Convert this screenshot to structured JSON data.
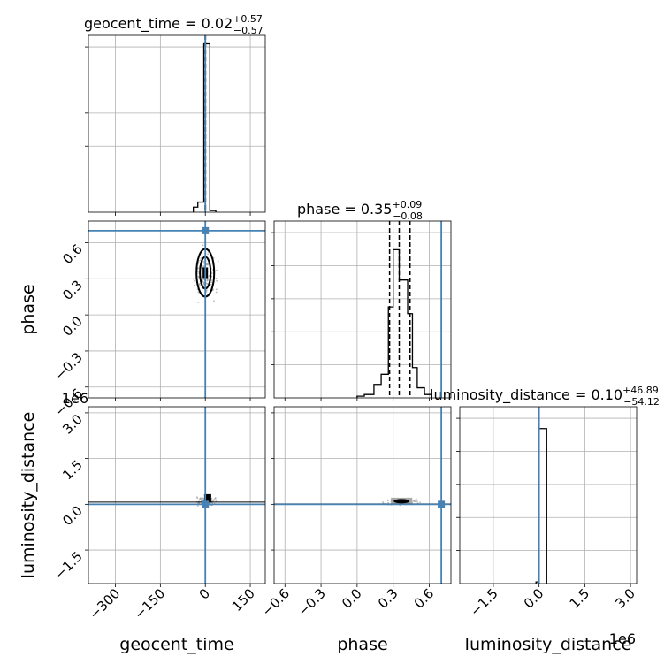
{
  "chart_data": {
    "type": "corner",
    "parameters": [
      "geocent_time",
      "phase",
      "luminosity_distance"
    ],
    "truth_color": "#4682b4",
    "panels": {
      "geocent_time_hist": {
        "title": "geocent_time = 0.02",
        "title_sup": "+0.57",
        "title_sub": "−0.57",
        "xlim": [
          -390,
          200
        ],
        "bins": [
          [
            -40,
            -25,
            0.03
          ],
          [
            -25,
            -5,
            0.06
          ],
          [
            -5,
            15,
            1.0
          ],
          [
            15,
            35,
            0.01
          ]
        ],
        "quantiles": [
          -0.55,
          0.02,
          0.59
        ],
        "truth": 0
      },
      "phase_hist": {
        "title": "phase = 0.35",
        "title_sup": "+0.09",
        "title_sub": "−0.08",
        "xlim": [
          -0.69,
          0.78
        ],
        "bins": [
          [
            0.0,
            0.06,
            0.01
          ],
          [
            0.06,
            0.14,
            0.02
          ],
          [
            0.14,
            0.2,
            0.08
          ],
          [
            0.2,
            0.26,
            0.14
          ],
          [
            0.26,
            0.3,
            0.54
          ],
          [
            0.3,
            0.35,
            0.88
          ],
          [
            0.35,
            0.42,
            0.7
          ],
          [
            0.42,
            0.46,
            0.5
          ],
          [
            0.46,
            0.5,
            0.18
          ],
          [
            0.5,
            0.56,
            0.06
          ],
          [
            0.56,
            0.62,
            0.02
          ]
        ],
        "quantiles": [
          0.27,
          0.35,
          0.44
        ],
        "truth": 0.7
      },
      "luminosity_distance_hist": {
        "title": "luminosity_distance = 0.10",
        "title_sup": "+46.89",
        "title_sub": "−54.12",
        "xlim": [
          -2.6,
          3.2
        ],
        "offset": "1e6",
        "bins": [
          [
            -0.1,
            0.0,
            0.01
          ],
          [
            0.0,
            0.25,
            0.92
          ]
        ],
        "quantiles": [
          -5.41e-05,
          1e-07,
          4.69e-05
        ],
        "truth": 0
      },
      "phase_vs_geocent_time": {
        "xlim": [
          -390,
          200
        ],
        "ylim": [
          -0.69,
          0.78
        ],
        "center": [
          0,
          0.35
        ],
        "truth": [
          0,
          0.7
        ]
      },
      "luminosity_distance_vs_geocent_time": {
        "xlim": [
          -390,
          200
        ],
        "ylim": [
          -2.6,
          3.2
        ],
        "offset": "1e6",
        "center": [
          5,
          0.1
        ],
        "truth": [
          0,
          0
        ]
      },
      "luminosity_distance_vs_phase": {
        "xlim": [
          -0.69,
          0.78
        ],
        "ylim": [
          -2.6,
          3.2
        ],
        "center": [
          0.37,
          0.1
        ],
        "truth": [
          0.7,
          0
        ]
      }
    },
    "ticks": {
      "geocent_time": [
        "−300",
        "−150",
        "0",
        "150"
      ],
      "geocent_time_values": [
        -300,
        -150,
        0,
        150
      ],
      "phase": [
        "−0.6",
        "−0.3",
        "0.0",
        "0.3",
        "0.6"
      ],
      "phase_values": [
        -0.6,
        -0.3,
        0.0,
        0.3,
        0.6
      ],
      "luminosity_distance": [
        "−1.5",
        "0.0",
        "1.5",
        "3.0"
      ],
      "luminosity_distance_values": [
        -1.5,
        0.0,
        1.5,
        3.0
      ]
    },
    "axis_labels": {
      "x": [
        "geocent_time",
        "phase",
        "luminosity_distance"
      ],
      "y": [
        "phase",
        "luminosity_distance"
      ]
    },
    "offset_labels": {
      "y_distance": "1e6",
      "x_distance": "1e6"
    },
    "grid": true
  }
}
